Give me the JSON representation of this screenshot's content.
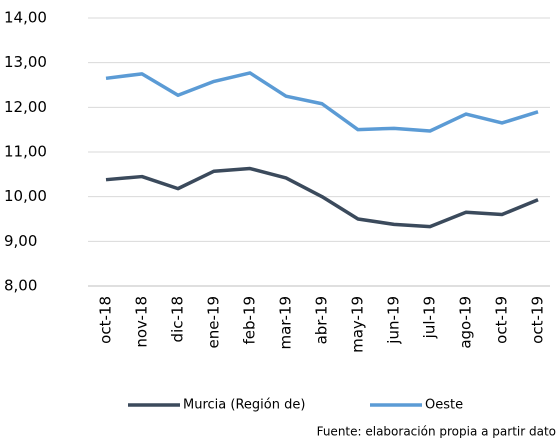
{
  "chart_data": {
    "type": "line",
    "categories": [
      "oct-18",
      "nov-18",
      "dic-18",
      "ene-19",
      "feb-19",
      "mar-19",
      "abr-19",
      "may-19",
      "jun-19",
      "jul-19",
      "ago-19",
      "oct-19",
      "oct-19"
    ],
    "series": [
      {
        "name": "Murcia (Región de)",
        "color": "#3b4a5c",
        "values": [
          10.38,
          10.45,
          10.18,
          10.57,
          10.63,
          10.42,
          10.0,
          9.5,
          9.38,
          9.33,
          9.65,
          9.6,
          9.93
        ]
      },
      {
        "name": "Oeste",
        "color": "#5b9bd5",
        "values": [
          12.65,
          12.75,
          12.27,
          12.58,
          12.77,
          12.25,
          12.08,
          11.5,
          11.53,
          11.47,
          11.85,
          11.65,
          11.9
        ]
      }
    ],
    "ylim": [
      8,
      14
    ],
    "yticks": [
      {
        "value": 8,
        "label": "8,00"
      },
      {
        "value": 9,
        "label": "9,00"
      },
      {
        "value": 10,
        "label": "10,00"
      },
      {
        "value": 11,
        "label": "11,00"
      },
      {
        "value": 12,
        "label": "12,00"
      },
      {
        "value": 13,
        "label": "13,00"
      },
      {
        "value": 14,
        "label": "14,00"
      }
    ],
    "grid": true,
    "source": "Fuente: elaboración propia a partir dato"
  }
}
